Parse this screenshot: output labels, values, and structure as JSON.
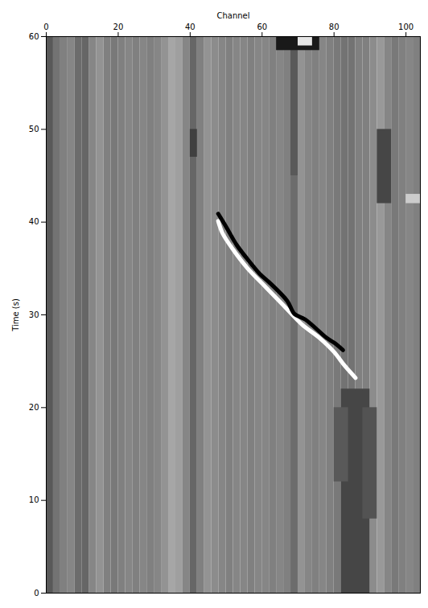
{
  "chart_data": {
    "type": "heatmap",
    "xlabel": "Channel",
    "ylabel": "Time (s)",
    "xlim": [
      0,
      104
    ],
    "ylim": [
      0,
      60
    ],
    "xticks": [
      0,
      20,
      40,
      60,
      80,
      100
    ],
    "yticks": [
      0,
      10,
      20,
      30,
      40,
      50,
      60
    ],
    "zlim": [
      -1,
      1
    ],
    "columns": {
      "width": 2,
      "x": [
        0,
        2,
        4,
        6,
        8,
        10,
        12,
        14,
        16,
        18,
        20,
        22,
        24,
        26,
        28,
        30,
        32,
        34,
        36,
        38,
        40,
        42,
        44,
        46,
        48,
        50,
        52,
        54,
        56,
        58,
        60,
        62,
        64,
        66,
        68,
        70,
        72,
        74,
        76,
        78,
        80,
        82,
        84,
        86,
        88,
        90,
        92,
        94,
        96,
        98,
        100,
        102,
        104
      ],
      "values": [
        -0.3,
        -0.1,
        0,
        0.05,
        -0.15,
        -0.2,
        0.05,
        0.15,
        0,
        -0.05,
        0,
        0.05,
        0,
        0.05,
        0,
        0.05,
        0.15,
        0.3,
        0.25,
        0.05,
        -0.2,
        0,
        0.15,
        0.1,
        0.05,
        0,
        0.05,
        0.05,
        0,
        0.05,
        0.05,
        0,
        0.05,
        0,
        -0.15,
        0.15,
        0.05,
        0,
        0.05,
        0,
        -0.05,
        -0.1,
        -0.1,
        0,
        0,
        0.1,
        0.2,
        0.05,
        -0.05,
        0,
        0.05,
        0,
        0
      ]
    },
    "patches": [
      {
        "x0": 82,
        "x1": 90,
        "y0": 0,
        "y1": 22,
        "value": -0.45
      },
      {
        "x0": 80,
        "x1": 84,
        "y0": 12,
        "y1": 20,
        "value": -0.3
      },
      {
        "x0": 88,
        "x1": 92,
        "y0": 8,
        "y1": 20,
        "value": -0.35
      },
      {
        "x0": 92,
        "x1": 96,
        "y0": 42,
        "y1": 50,
        "value": -0.45
      },
      {
        "x0": 40,
        "x1": 42,
        "y0": 47,
        "y1": 50,
        "value": -0.5
      },
      {
        "x0": 68,
        "x1": 70,
        "y0": 45,
        "y1": 60,
        "value": -0.3
      },
      {
        "x0": 64,
        "x1": 76,
        "y0": 58.5,
        "y1": 60,
        "value": -0.8
      },
      {
        "x0": 70,
        "x1": 74,
        "y0": 59,
        "y1": 60,
        "value": 0.8
      },
      {
        "x0": 100,
        "x1": 104,
        "y0": 42,
        "y1": 43,
        "value": 0.6
      }
    ],
    "series": [
      {
        "color": "#ffffff",
        "x": [
          47.8,
          49,
          52,
          56,
          61,
          66,
          71,
          76,
          80,
          83,
          86
        ],
        "y": [
          40.1,
          38.8,
          37,
          35,
          33,
          31,
          29,
          27.5,
          26,
          24.5,
          23.2
        ]
      },
      {
        "color": "#000000",
        "x": [
          47.8,
          50,
          53,
          57,
          59.4,
          62,
          67,
          69,
          72,
          78,
          80,
          82.5
        ],
        "y": [
          40.9,
          39.5,
          37.5,
          35.5,
          34.4,
          33.5,
          31.5,
          30.1,
          29.5,
          27.5,
          27,
          26.2
        ]
      }
    ]
  }
}
